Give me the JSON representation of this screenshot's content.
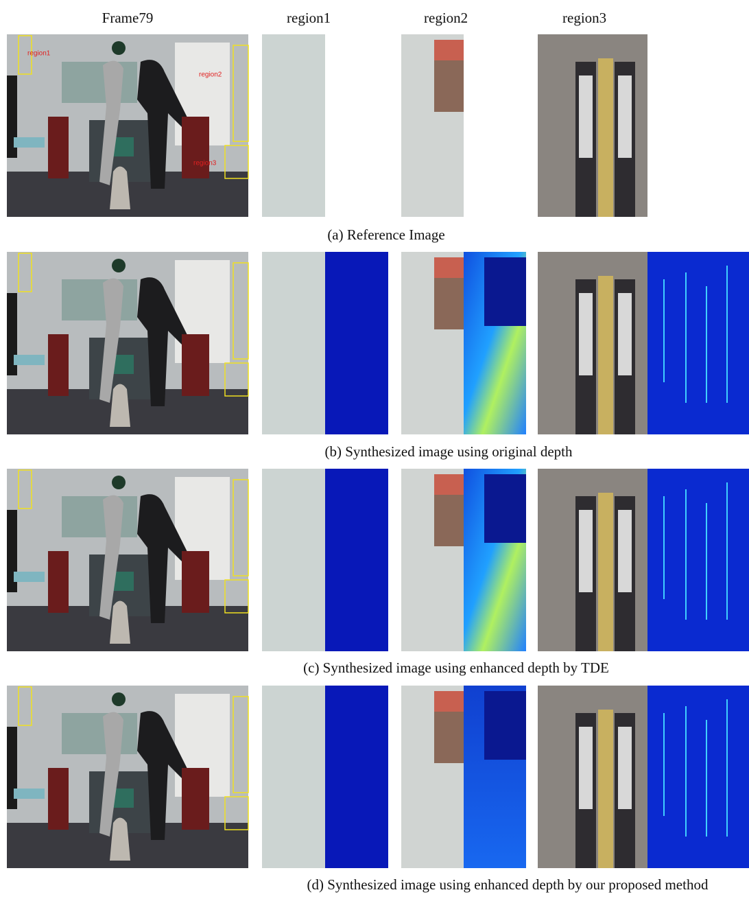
{
  "header": {
    "columns": [
      "Frame79",
      "region1",
      "region2",
      "region3"
    ]
  },
  "frame_labels": [
    "region1",
    "region2",
    "region3"
  ],
  "rows": [
    {
      "caption": "(a) Reference Image"
    },
    {
      "caption": "(b) Synthesized image using original depth"
    },
    {
      "caption": "(c) Synthesized image using enhanced depth by TDE"
    },
    {
      "caption": "(d) Synthesized image using enhanced depth by our proposed method"
    }
  ]
}
